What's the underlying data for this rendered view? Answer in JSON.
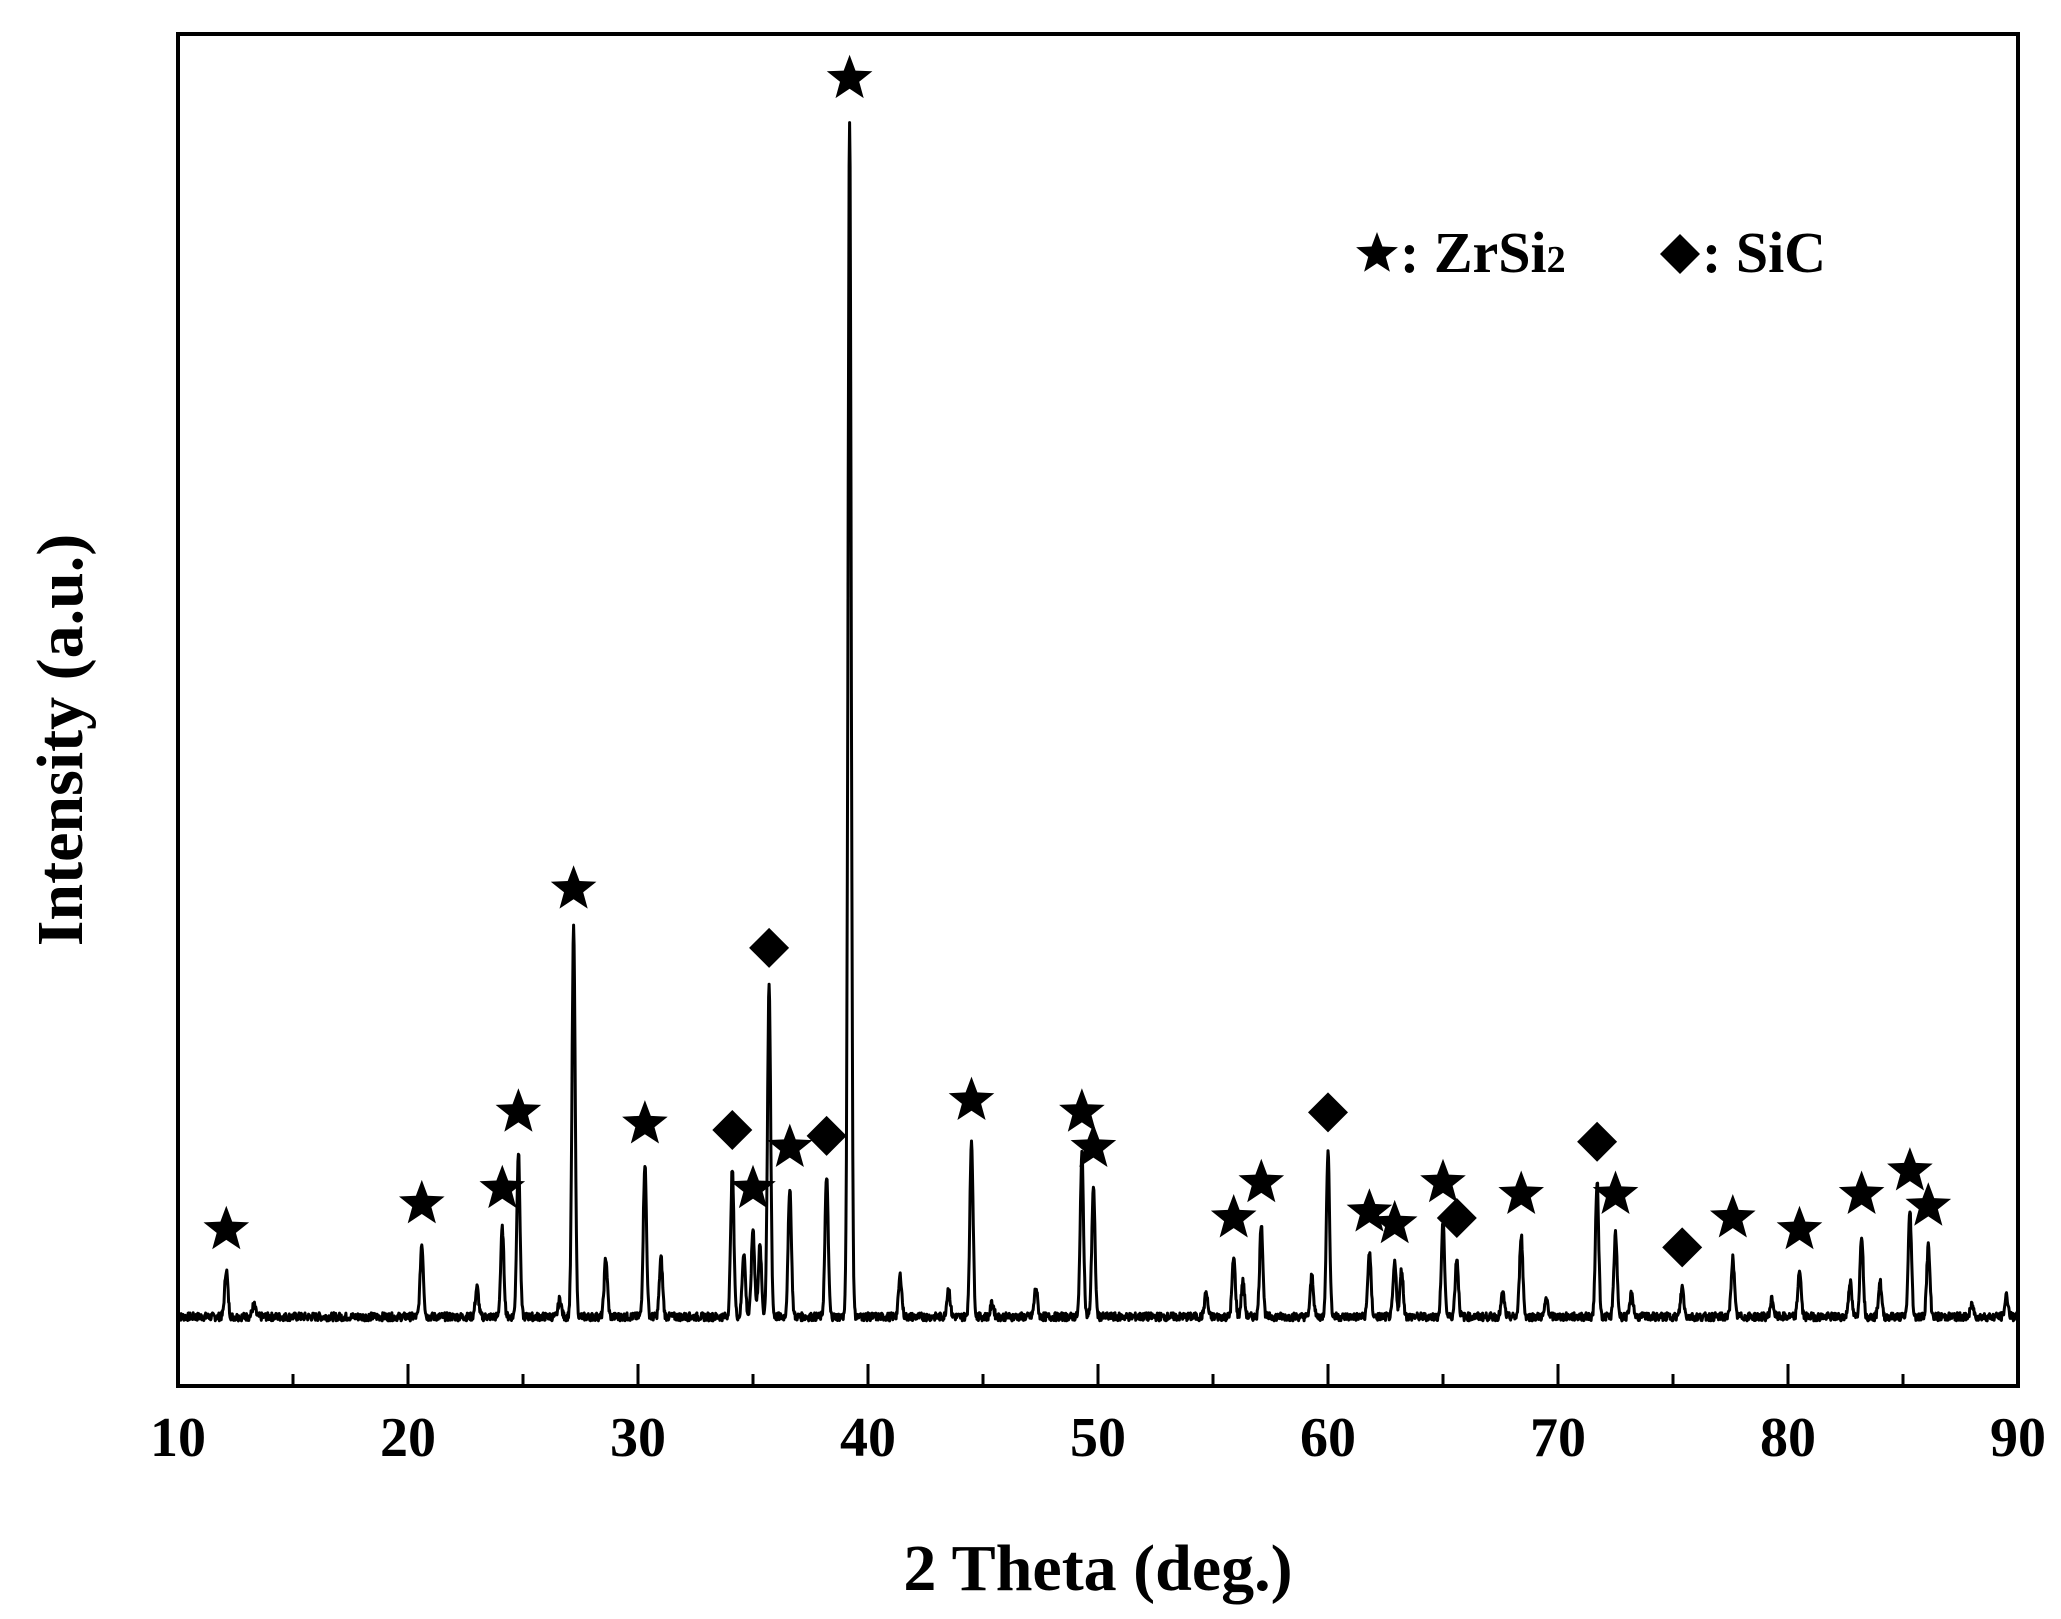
{
  "chart_data": {
    "type": "line",
    "xlabel": "2 Theta (deg.)",
    "ylabel": "Intensity (a.u.)",
    "xlim": [
      10,
      90
    ],
    "ylim": [
      0,
      1100
    ],
    "baseline": 30,
    "x_ticks": [
      10,
      20,
      30,
      40,
      50,
      60,
      70,
      80,
      90
    ],
    "x_tick_labels": [
      "10",
      "20",
      "30",
      "40",
      "50",
      "60",
      "70",
      "80",
      "90"
    ],
    "y_ticks_shown": false,
    "legend": {
      "position": "top-right",
      "entries": [
        {
          "symbol": "star",
          "prefix": ": ZrSi",
          "sub": "2"
        },
        {
          "symbol": "diamond",
          "prefix": ": SiC",
          "sub": ""
        }
      ]
    },
    "peaks": [
      {
        "x": 12.1,
        "y": 40,
        "phase": "ZrSi2",
        "marked": true
      },
      {
        "x": 13.3,
        "y": 10,
        "phase": "none",
        "marked": false
      },
      {
        "x": 20.6,
        "y": 62,
        "phase": "ZrSi2",
        "marked": true
      },
      {
        "x": 23.0,
        "y": 25,
        "phase": "none",
        "marked": false
      },
      {
        "x": 24.1,
        "y": 75,
        "phase": "ZrSi2",
        "marked": true
      },
      {
        "x": 24.8,
        "y": 140,
        "phase": "ZrSi2",
        "marked": true
      },
      {
        "x": 26.6,
        "y": 15,
        "phase": "none",
        "marked": false
      },
      {
        "x": 27.2,
        "y": 330,
        "phase": "ZrSi2",
        "marked": true
      },
      {
        "x": 28.6,
        "y": 50,
        "phase": "none",
        "marked": false
      },
      {
        "x": 30.3,
        "y": 130,
        "phase": "ZrSi2",
        "marked": true
      },
      {
        "x": 31.0,
        "y": 50,
        "phase": "none",
        "marked": false
      },
      {
        "x": 34.1,
        "y": 125,
        "phase": "SiC",
        "marked": true
      },
      {
        "x": 34.6,
        "y": 55,
        "phase": "none",
        "marked": false
      },
      {
        "x": 35.0,
        "y": 75,
        "phase": "ZrSi2",
        "marked": true
      },
      {
        "x": 35.3,
        "y": 60,
        "phase": "none",
        "marked": false
      },
      {
        "x": 35.7,
        "y": 280,
        "phase": "SiC",
        "marked": true
      },
      {
        "x": 36.6,
        "y": 110,
        "phase": "ZrSi2",
        "marked": true
      },
      {
        "x": 38.2,
        "y": 120,
        "phase": "SiC",
        "marked": true
      },
      {
        "x": 39.2,
        "y": 1020,
        "phase": "ZrSi2",
        "marked": true
      },
      {
        "x": 41.4,
        "y": 35,
        "phase": "none",
        "marked": false
      },
      {
        "x": 43.5,
        "y": 25,
        "phase": "none",
        "marked": false
      },
      {
        "x": 44.5,
        "y": 150,
        "phase": "ZrSi2",
        "marked": true
      },
      {
        "x": 45.4,
        "y": 12,
        "phase": "none",
        "marked": false
      },
      {
        "x": 47.3,
        "y": 25,
        "phase": "none",
        "marked": false
      },
      {
        "x": 49.3,
        "y": 140,
        "phase": "ZrSi2",
        "marked": true
      },
      {
        "x": 49.8,
        "y": 110,
        "phase": "ZrSi2",
        "marked": true
      },
      {
        "x": 54.7,
        "y": 20,
        "phase": "none",
        "marked": false
      },
      {
        "x": 55.9,
        "y": 50,
        "phase": "ZrSi2",
        "marked": true
      },
      {
        "x": 56.3,
        "y": 30,
        "phase": "none",
        "marked": false
      },
      {
        "x": 57.1,
        "y": 80,
        "phase": "ZrSi2",
        "marked": true
      },
      {
        "x": 59.3,
        "y": 35,
        "phase": "none",
        "marked": false
      },
      {
        "x": 60.0,
        "y": 140,
        "phase": "SiC",
        "marked": true
      },
      {
        "x": 61.8,
        "y": 55,
        "phase": "ZrSi2",
        "marked": true
      },
      {
        "x": 62.9,
        "y": 45,
        "phase": "ZrSi2",
        "marked": true
      },
      {
        "x": 63.2,
        "y": 40,
        "phase": "none",
        "marked": false
      },
      {
        "x": 65.0,
        "y": 80,
        "phase": "ZrSi2",
        "marked": true
      },
      {
        "x": 65.6,
        "y": 50,
        "phase": "SiC",
        "marked": true
      },
      {
        "x": 67.6,
        "y": 20,
        "phase": "none",
        "marked": false
      },
      {
        "x": 68.4,
        "y": 70,
        "phase": "ZrSi2",
        "marked": true
      },
      {
        "x": 69.5,
        "y": 15,
        "phase": "none",
        "marked": false
      },
      {
        "x": 71.7,
        "y": 115,
        "phase": "SiC",
        "marked": true
      },
      {
        "x": 72.5,
        "y": 70,
        "phase": "ZrSi2",
        "marked": true
      },
      {
        "x": 73.2,
        "y": 20,
        "phase": "none",
        "marked": false
      },
      {
        "x": 75.4,
        "y": 25,
        "phase": "SiC",
        "marked": true
      },
      {
        "x": 77.6,
        "y": 50,
        "phase": "ZrSi2",
        "marked": true
      },
      {
        "x": 79.3,
        "y": 15,
        "phase": "none",
        "marked": false
      },
      {
        "x": 80.5,
        "y": 40,
        "phase": "ZrSi2",
        "marked": true
      },
      {
        "x": 82.7,
        "y": 30,
        "phase": "none",
        "marked": false
      },
      {
        "x": 83.2,
        "y": 70,
        "phase": "ZrSi2",
        "marked": true
      },
      {
        "x": 84.0,
        "y": 30,
        "phase": "none",
        "marked": false
      },
      {
        "x": 85.3,
        "y": 90,
        "phase": "ZrSi2",
        "marked": true
      },
      {
        "x": 86.1,
        "y": 60,
        "phase": "ZrSi2",
        "marked": true
      },
      {
        "x": 88.0,
        "y": 10,
        "phase": "none",
        "marked": false
      },
      {
        "x": 89.5,
        "y": 18,
        "phase": "none",
        "marked": false
      }
    ]
  }
}
